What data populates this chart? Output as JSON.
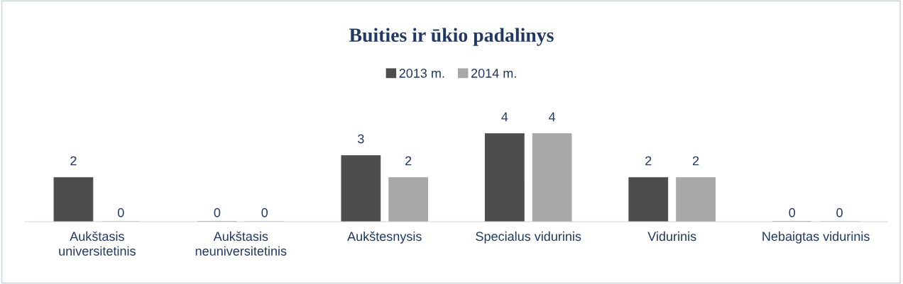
{
  "chart_data": {
    "type": "bar",
    "title": "Buities ir ūkio padalinys",
    "categories": [
      "Aukštasis\nuniversitetinis",
      "Aukštasis\nneuniversitetinis",
      "Aukštesnysis",
      "Specialus vidurinis",
      "Vidurinis",
      "Nebaigtas vidurinis"
    ],
    "series": [
      {
        "name": "2013 m.",
        "color": "#4d4d4d",
        "values": [
          2,
          0,
          3,
          4,
          2,
          0
        ]
      },
      {
        "name": "2014 m.",
        "color": "#a8a8a8",
        "values": [
          0,
          0,
          2,
          4,
          2,
          0
        ]
      }
    ],
    "data_labels": true,
    "legend": "top",
    "grid": false
  }
}
